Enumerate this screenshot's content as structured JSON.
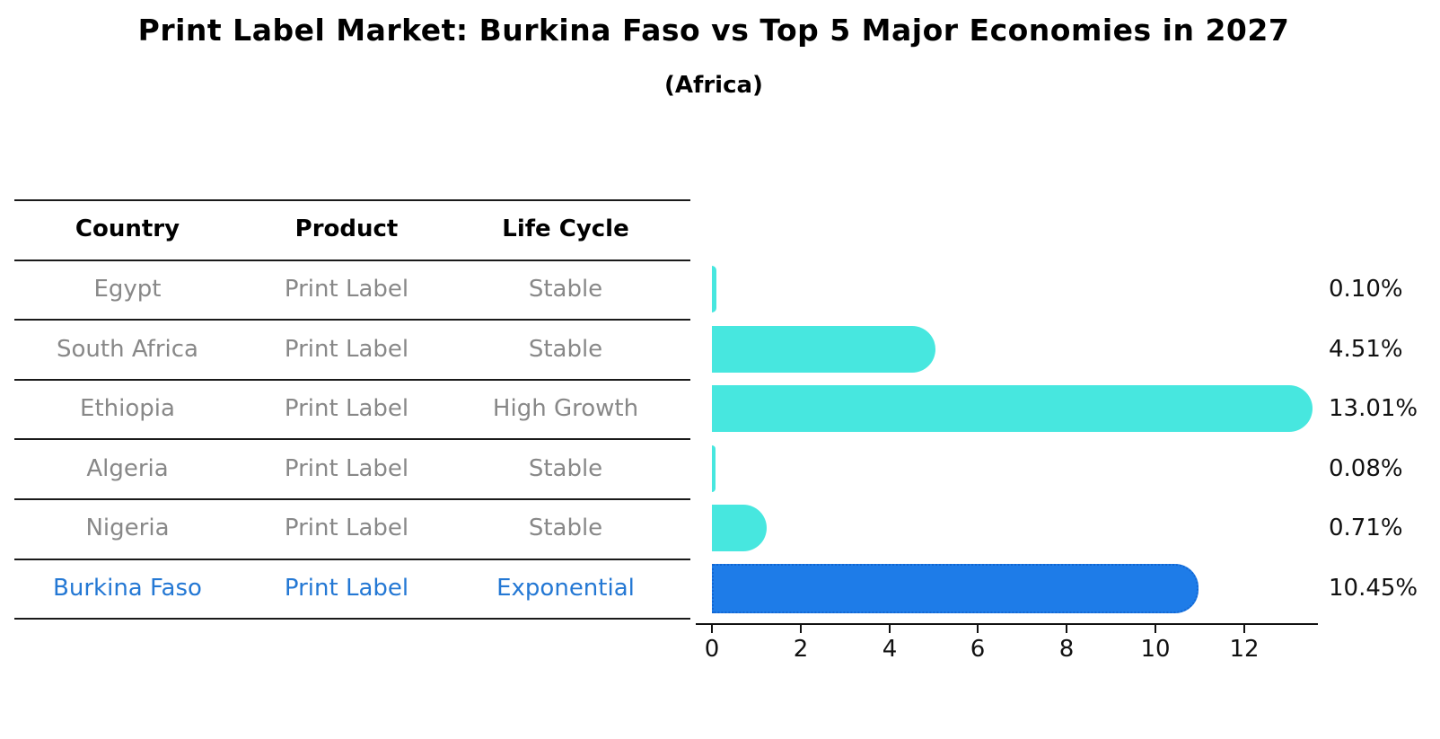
{
  "title": "Print Label Market: Burkina Faso vs Top 5 Major Economies in 2027",
  "subtitle": "(Africa)",
  "colors": {
    "bar_primary": "#47e7df",
    "bar_highlight": "#1e7ce8",
    "bar_highlight_border": "#1266d2",
    "row_text": "#888888",
    "highlight_text": "#2478d4",
    "header_text": "#000000",
    "axis": "#111111",
    "table_line": "#1a1a1a"
  },
  "table": {
    "headers": [
      "Country",
      "Product",
      "Life Cycle"
    ],
    "rows": [
      {
        "country": "Egypt",
        "product": "Print Label",
        "life_cycle": "Stable",
        "highlighted": false
      },
      {
        "country": "South Africa",
        "product": "Print Label",
        "life_cycle": "Stable",
        "highlighted": false
      },
      {
        "country": "Ethiopia",
        "product": "Print Label",
        "life_cycle": "High Growth",
        "highlighted": false
      },
      {
        "country": "Algeria",
        "product": "Print Label",
        "life_cycle": "Stable",
        "highlighted": false
      },
      {
        "country": "Nigeria",
        "product": "Print Label",
        "life_cycle": "Stable",
        "highlighted": false
      },
      {
        "country": "Burkina Faso",
        "product": "Print Label",
        "life_cycle": "Exponential",
        "highlighted": true
      }
    ]
  },
  "chart_data": {
    "type": "bar",
    "orientation": "horizontal",
    "title": "Print Label Market: Burkina Faso vs Top 5 Major Economies in 2027",
    "subtitle": "(Africa)",
    "categories": [
      "Egypt",
      "South Africa",
      "Ethiopia",
      "Algeria",
      "Nigeria",
      "Burkina Faso"
    ],
    "values": [
      0.1,
      4.51,
      13.01,
      0.08,
      0.71,
      10.45
    ],
    "value_labels": [
      "0.10%",
      "4.51%",
      "13.01%",
      "0.08%",
      "0.71%",
      "10.45%"
    ],
    "x_ticks": [
      0,
      2,
      4,
      6,
      8,
      10,
      12
    ],
    "xlim": [
      0,
      13.7
    ],
    "xlabel": "",
    "ylabel": "",
    "grid": false,
    "legend": false,
    "highlight_index": 5,
    "highlight_style": "dotted-border"
  }
}
